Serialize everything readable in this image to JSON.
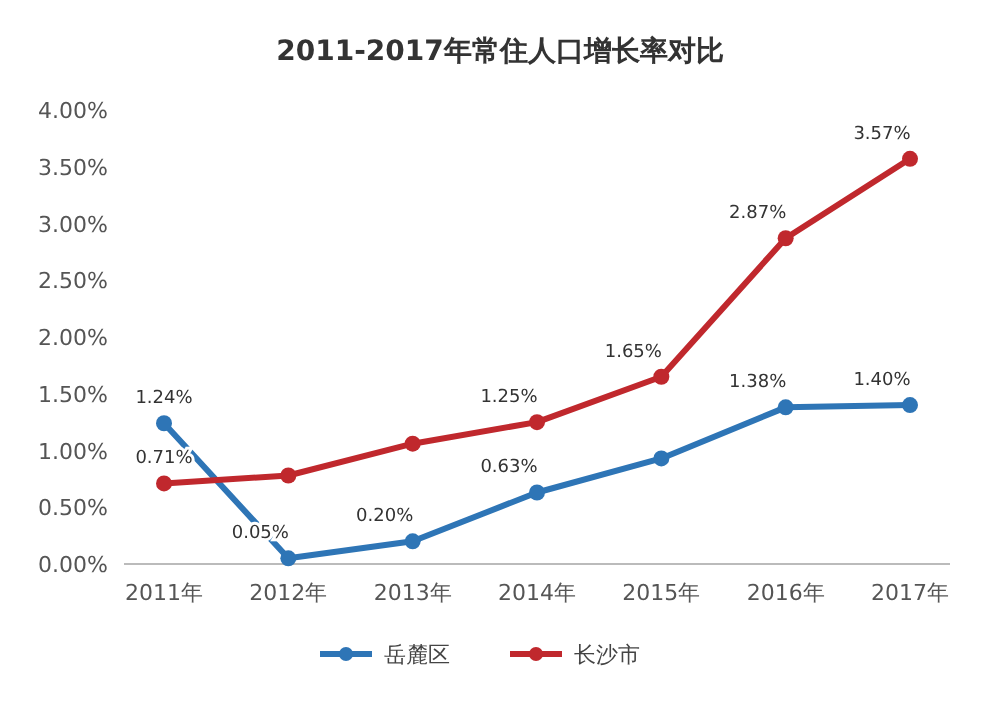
{
  "chart_data": {
    "type": "line",
    "title": "2011-2017年常住人口增长率对比",
    "categories": [
      "2011年",
      "2012年",
      "2013年",
      "2014年",
      "2015年",
      "2016年",
      "2017年"
    ],
    "series": [
      {
        "name": "岳麓区",
        "color": "#2e75b6",
        "values": [
          1.24,
          0.05,
          0.2,
          0.63,
          0.93,
          1.38,
          1.4
        ],
        "value_labels": [
          "1.24%",
          "0.05%",
          "0.20%",
          "0.63%",
          null,
          "1.38%",
          "1.40%"
        ]
      },
      {
        "name": "长沙市",
        "color": "#c0282d",
        "values": [
          0.71,
          0.78,
          1.06,
          1.25,
          1.65,
          2.87,
          3.57
        ],
        "value_labels": [
          "0.71%",
          null,
          null,
          "1.25%",
          "1.65%",
          "2.87%",
          "3.57%"
        ]
      }
    ],
    "ylim": [
      0,
      4
    ],
    "yticks": [
      {
        "value": 0,
        "label": "0.00%"
      },
      {
        "value": 0.5,
        "label": "0.50%"
      },
      {
        "value": 1,
        "label": "1.00%"
      },
      {
        "value": 1.5,
        "label": "1.50%"
      },
      {
        "value": 2,
        "label": "2.00%"
      },
      {
        "value": 2.5,
        "label": "2.50%"
      },
      {
        "value": 3,
        "label": "3.00%"
      },
      {
        "value": 3.5,
        "label": "3.50%"
      },
      {
        "value": 4,
        "label": "4.00%"
      }
    ],
    "grid": false,
    "legend": "bottom",
    "marker": "circle",
    "line_style": "solid"
  }
}
